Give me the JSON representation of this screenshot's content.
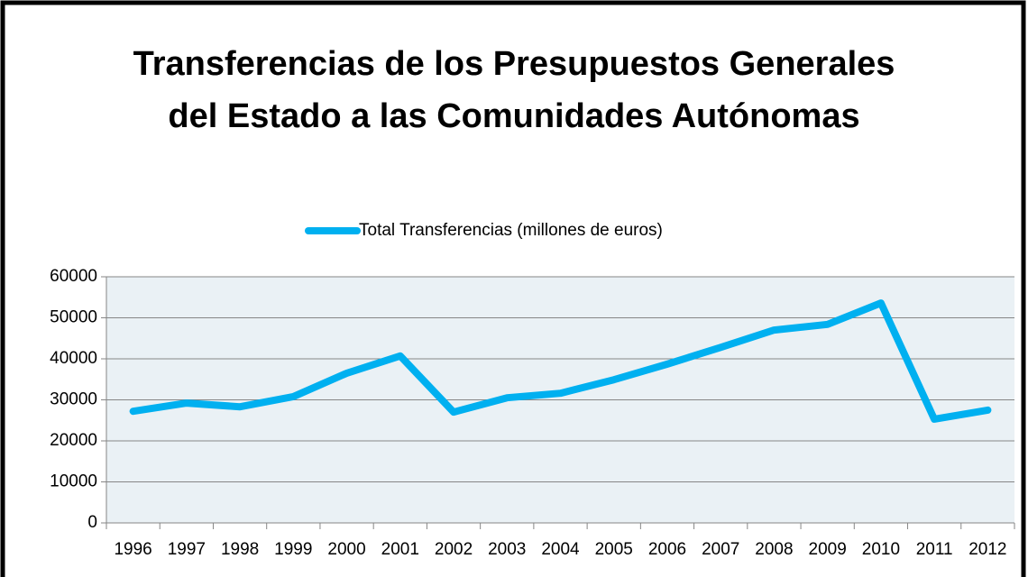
{
  "chart_data": {
    "type": "line",
    "title": "Transferencias de los Presupuestos Generales del Estado a las Comunidades Autónomas",
    "categories": [
      "1996",
      "1997",
      "1998",
      "1999",
      "2000",
      "2001",
      "2002",
      "2003",
      "2004",
      "2005",
      "2006",
      "2007",
      "2008",
      "2009",
      "2010",
      "2011",
      "2012"
    ],
    "series": [
      {
        "name": "Total Transferencias (millones de euros)",
        "color": "#00b0f0",
        "values": [
          27200,
          29200,
          28300,
          30800,
          36500,
          40700,
          27000,
          30500,
          31600,
          34900,
          38700,
          42800,
          47000,
          48400,
          53600,
          25300,
          27500
        ]
      }
    ],
    "ylim": [
      0,
      60000
    ],
    "yticks": [
      0,
      10000,
      20000,
      30000,
      40000,
      50000,
      60000
    ],
    "grid": true,
    "legend": "top"
  }
}
